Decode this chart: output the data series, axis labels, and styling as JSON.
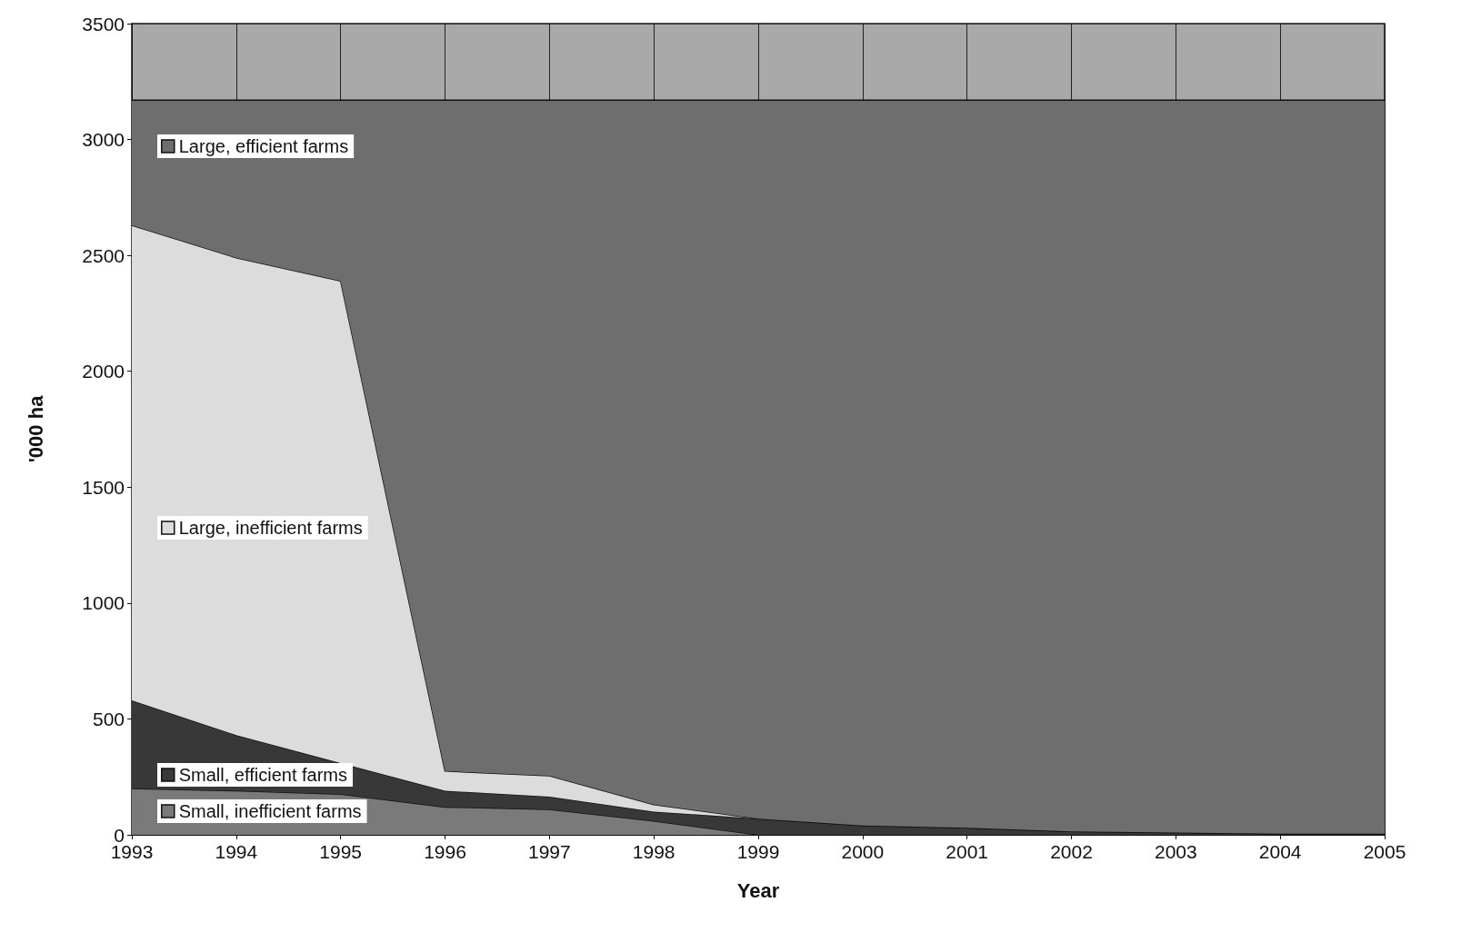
{
  "chart_data": {
    "type": "area",
    "stacked": true,
    "xlabel": "Year",
    "ylabel": "'000 ha",
    "x": [
      1993,
      1994,
      1995,
      1996,
      1997,
      1998,
      1999,
      2000,
      2001,
      2002,
      2003,
      2004,
      2005
    ],
    "series": [
      {
        "name": "Small, inefficient farms",
        "color": "#7a7a7a",
        "values": [
          200,
          190,
          175,
          120,
          110,
          60,
          0,
          0,
          0,
          0,
          0,
          0,
          0
        ]
      },
      {
        "name": "Small, efficient farms",
        "color": "#383838",
        "values": [
          380,
          240,
          135,
          70,
          55,
          40,
          70,
          40,
          30,
          15,
          10,
          5,
          5
        ]
      },
      {
        "name": "Large, inefficient farms",
        "color": "#dcdcdc",
        "values": [
          2050,
          2060,
          2080,
          85,
          90,
          30,
          0,
          0,
          0,
          0,
          0,
          0,
          0
        ]
      },
      {
        "name": "Large, efficient farms",
        "color": "#6e6e6e",
        "values": [
          540,
          680,
          780,
          2895,
          2915,
          3040,
          3100,
          3130,
          3140,
          3155,
          3160,
          3165,
          3165
        ]
      }
    ],
    "xlim": [
      1993,
      2005
    ],
    "xticks": [
      1993,
      1994,
      1995,
      1996,
      1997,
      1998,
      1999,
      2000,
      2001,
      2002,
      2003,
      2004,
      2005
    ],
    "ylim": [
      0,
      3500
    ],
    "yticks": [
      0,
      500,
      1000,
      1500,
      2000,
      2500,
      3000,
      3500
    ],
    "grid": "x",
    "legend": "left"
  }
}
